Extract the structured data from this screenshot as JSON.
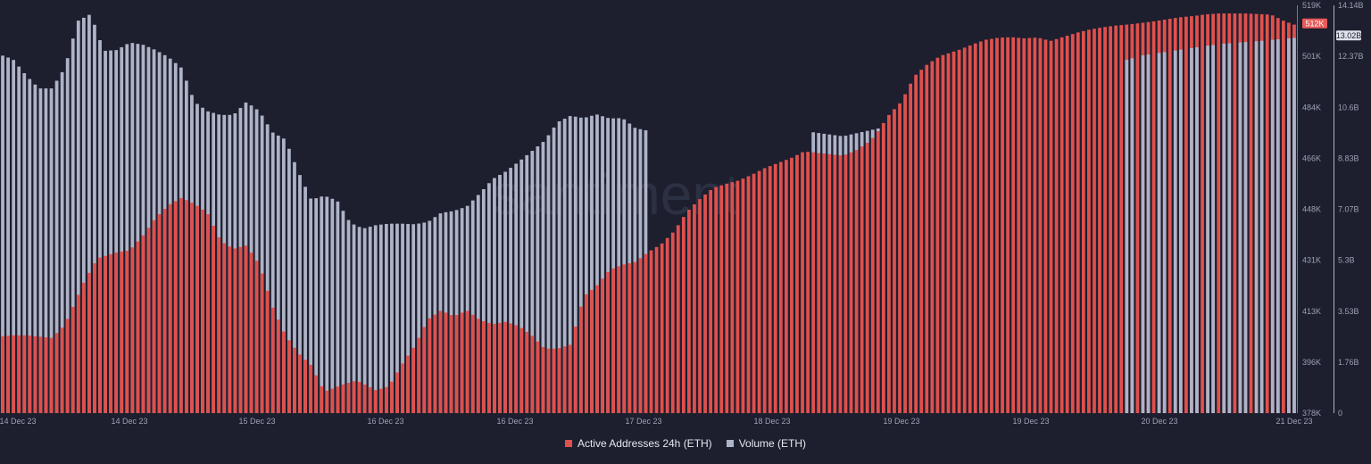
{
  "watermark": "santiment",
  "legend": {
    "active_label": "Active Addresses 24h (ETH)",
    "volume_label": "Volume (ETH)"
  },
  "colors": {
    "background": "#1d1f2e",
    "active": "#e0504d",
    "volume": "#aeb3c7",
    "active_badge": "#e85a5a",
    "volume_badge": "#dfe2ea",
    "axis_text": "#9aa0b4"
  },
  "chart_data": {
    "type": "bar",
    "x_tick_labels": [
      "14 Dec 23",
      "14 Dec 23",
      "15 Dec 23",
      "16 Dec 23",
      "16 Dec 23",
      "17 Dec 23",
      "18 Dec 23",
      "19 Dec 23",
      "19 Dec 23",
      "20 Dec 23",
      "21 Dec 23"
    ],
    "y_left_ticks": [
      "519K",
      "501K",
      "484K",
      "466K",
      "448K",
      "431K",
      "413K",
      "396K",
      "378K"
    ],
    "y_right_ticks": [
      "14.14B",
      "12.37B",
      "10.6B",
      "8.83B",
      "7.07B",
      "5.3B",
      "3.53B",
      "1.76B",
      "0"
    ],
    "y_left_range": [
      378000,
      519000
    ],
    "y_right_range": [
      0,
      14.14
    ],
    "y_right_unit": "B",
    "current_active_label": "512K",
    "current_volume_label": "13.02B",
    "series": [
      {
        "name": "Active Addresses 24h (ETH)",
        "axis": "left",
        "x": [
          0,
          2,
          4,
          6,
          8,
          10,
          13,
          15,
          18,
          20,
          22,
          24,
          26,
          28,
          30,
          32,
          34,
          36,
          38,
          40,
          42,
          44,
          46,
          48,
          50,
          53,
          55,
          58,
          60,
          62,
          64,
          66,
          68,
          70,
          72,
          74,
          76,
          78,
          80,
          82,
          84,
          86,
          88,
          90,
          92,
          94,
          96,
          98,
          100
        ],
        "values": [
          404500,
          404900,
          404900,
          404500,
          404000,
          408500,
          423500,
          431500,
          433600,
          434300,
          439200,
          445500,
          449900,
          452500,
          450300,
          447200,
          437600,
          434800,
          436000,
          429300,
          414900,
          405000,
          398800,
          394500,
          385400,
          388000,
          389300,
          385900,
          387300,
          394900,
          401400,
          410400,
          413500,
          411500,
          413500,
          410200,
          408800,
          409600,
          408100,
          404900,
          400300,
          400300,
          401700,
          418300,
          422000,
          427500,
          429300,
          430300,
          433700
        ],
        "x2": [
          100,
          102,
          104,
          106,
          108,
          110,
          112,
          114,
          116,
          118,
          120,
          122,
          124,
          126,
          128,
          130,
          132,
          134,
          135,
          137,
          139,
          141,
          143,
          145,
          148,
          150,
          152,
          154,
          156,
          158,
          160,
          162,
          164,
          166,
          168,
          170,
          172,
          174,
          176,
          178,
          180,
          182,
          184,
          186,
          188,
          190,
          192,
          194,
          196,
          198,
          200
        ],
        "values2": [
          433700,
          436500,
          441000,
          447800,
          452200,
          455900,
          457300,
          458500,
          460500,
          462800,
          464500,
          466200,
          468500,
          468000,
          467500,
          467000,
          468800,
          471800,
          474000,
          480900,
          485700,
          494500,
          498600,
          501500,
          503700,
          505500,
          507100,
          507800,
          508000,
          507600,
          507900,
          506700,
          508100,
          509500,
          510600,
          511400,
          512000,
          512400,
          512900,
          513500,
          514200,
          514900,
          515300,
          515900,
          516200,
          516200,
          516200,
          516000,
          515800,
          513600,
          512000
        ]
      },
      {
        "name": "Volume (ETH)",
        "axis": "right",
        "x": [
          0,
          2,
          4,
          6,
          8,
          10,
          12,
          14,
          16,
          18,
          20,
          22,
          24,
          26,
          28,
          30,
          32,
          34,
          36,
          38,
          40,
          42,
          44,
          46,
          48,
          50,
          52,
          54,
          56,
          58,
          60,
          62,
          64,
          66,
          68,
          70,
          72,
          74,
          76,
          78,
          80,
          82,
          84,
          86,
          88,
          90,
          92,
          94,
          96,
          98,
          100
        ],
        "values": [
          12.43,
          12.27,
          11.72,
          11.26,
          11.26,
          11.97,
          13.6,
          13.84,
          12.56,
          12.59,
          12.85,
          12.78,
          12.59,
          12.34,
          11.97,
          10.79,
          10.47,
          10.34,
          10.34,
          10.79,
          10.47,
          9.74,
          9.49,
          8.38,
          7.4,
          7.54,
          7.37,
          6.6,
          6.4,
          6.52,
          6.57,
          6.57,
          6.55,
          6.63,
          6.94,
          7.01,
          7.17,
          7.62,
          8.12,
          8.38,
          8.72,
          9.08,
          9.45,
          10.09,
          10.31,
          10.23,
          10.36,
          10.22,
          10.23,
          9.88,
          9.79
        ]
      }
    ]
  }
}
